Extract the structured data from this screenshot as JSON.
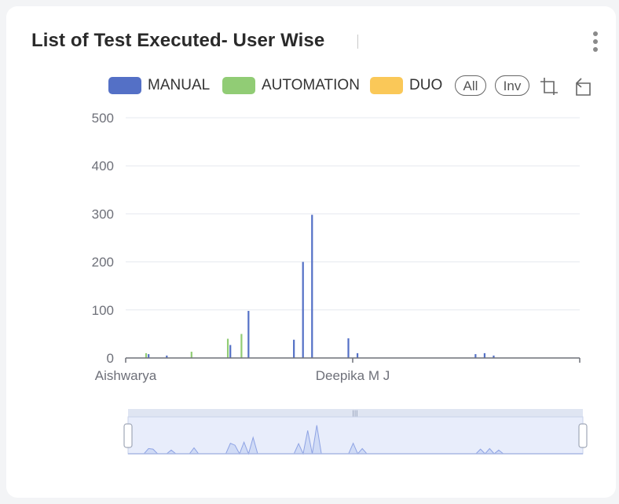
{
  "header": {
    "title": "List of Test Executed- User Wise"
  },
  "legend": [
    {
      "label": "MANUAL",
      "color": "#5470c6"
    },
    {
      "label": "AUTOMATION",
      "color": "#91cc75"
    },
    {
      "label": "DUO",
      "color": "#fac858"
    }
  ],
  "toolbar": {
    "all_label": "All",
    "inv_label": "Inv",
    "zoom_icon": "zoom-select-icon",
    "reset_icon": "zoom-reset-icon"
  },
  "chart_data": {
    "type": "bar",
    "ylim": [
      0,
      500
    ],
    "yticks": [
      0,
      100,
      200,
      300,
      400,
      500
    ],
    "xtick_labels": [
      {
        "index": 0,
        "label": "Aishwarya"
      },
      {
        "index": 50,
        "label": "Deepika M J"
      }
    ],
    "category_count": 100,
    "series": [
      {
        "name": "MANUAL",
        "values": [
          0,
          0,
          0,
          0,
          0,
          8,
          0,
          0,
          0,
          5,
          0,
          0,
          0,
          0,
          0,
          0,
          0,
          0,
          0,
          0,
          0,
          0,
          0,
          27,
          0,
          0,
          0,
          98,
          0,
          0,
          0,
          0,
          0,
          0,
          0,
          0,
          0,
          38,
          0,
          200,
          0,
          298,
          0,
          0,
          0,
          0,
          0,
          0,
          0,
          41,
          0,
          10,
          0,
          0,
          0,
          0,
          0,
          0,
          0,
          0,
          0,
          0,
          0,
          0,
          0,
          0,
          0,
          0,
          0,
          0,
          0,
          0,
          0,
          0,
          0,
          0,
          0,
          8,
          0,
          10,
          0,
          5,
          0,
          0,
          0,
          0,
          0,
          0,
          0,
          0,
          0,
          0,
          0,
          0,
          0,
          0,
          0,
          0,
          0,
          0
        ]
      },
      {
        "name": "AUTOMATION",
        "values": [
          0,
          0,
          0,
          0,
          10,
          0,
          0,
          0,
          0,
          0,
          0,
          0,
          0,
          0,
          13,
          0,
          0,
          0,
          0,
          0,
          0,
          0,
          40,
          0,
          0,
          50,
          0,
          0,
          0,
          0,
          0,
          0,
          0,
          0,
          0,
          0,
          0,
          0,
          0,
          0,
          0,
          0,
          0,
          0,
          0,
          0,
          0,
          0,
          0,
          0,
          0,
          0,
          0,
          0,
          0,
          0,
          0,
          0,
          0,
          0,
          0,
          0,
          0,
          0,
          0,
          0,
          0,
          0,
          0,
          0,
          0,
          0,
          0,
          0,
          0,
          0,
          0,
          0,
          0,
          0,
          0,
          0,
          0,
          0,
          0,
          0,
          0,
          0,
          0,
          0,
          0,
          0,
          0,
          0,
          0,
          0,
          0,
          0,
          0,
          0
        ]
      },
      {
        "name": "DUO",
        "values": [
          0,
          0,
          0,
          0,
          0,
          0,
          0,
          0,
          0,
          0,
          0,
          0,
          0,
          0,
          0,
          0,
          0,
          0,
          0,
          0,
          0,
          0,
          0,
          0,
          0,
          0,
          0,
          0,
          0,
          0,
          0,
          0,
          0,
          0,
          0,
          0,
          0,
          0,
          0,
          0,
          0,
          0,
          0,
          0,
          0,
          0,
          0,
          0,
          0,
          0,
          0,
          0,
          0,
          0,
          0,
          0,
          0,
          0,
          0,
          0,
          0,
          0,
          0,
          0,
          0,
          0,
          0,
          0,
          0,
          0,
          0,
          0,
          0,
          0,
          0,
          0,
          0,
          0,
          0,
          0,
          0,
          0,
          0,
          0,
          0,
          0,
          0,
          0,
          0,
          0,
          0,
          0,
          0,
          0,
          0,
          0,
          0,
          0,
          0,
          0
        ]
      }
    ],
    "grid": true,
    "legend_position": "top"
  }
}
